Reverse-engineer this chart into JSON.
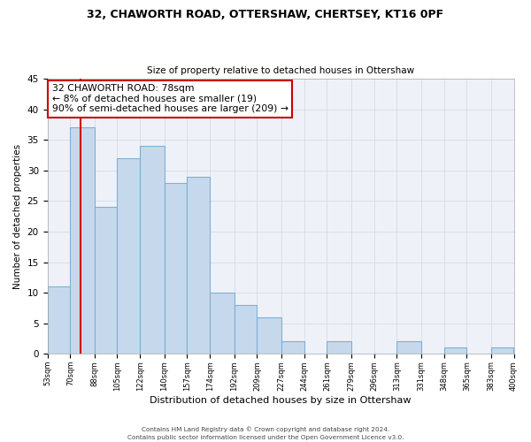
{
  "title_line1": "32, CHAWORTH ROAD, OTTERSHAW, CHERTSEY, KT16 0PF",
  "title_line2": "Size of property relative to detached houses in Ottershaw",
  "xlabel": "Distribution of detached houses by size in Ottershaw",
  "ylabel": "Number of detached properties",
  "bar_values": [
    11,
    37,
    24,
    32,
    34,
    28,
    29,
    10,
    8,
    6,
    2,
    0,
    2,
    0,
    0,
    2,
    0,
    1,
    0,
    1
  ],
  "bin_edges": [
    53,
    70,
    88,
    105,
    122,
    140,
    157,
    174,
    192,
    209,
    227,
    244,
    261,
    279,
    296,
    313,
    331,
    348,
    365,
    383,
    400
  ],
  "tick_labels": [
    "53sqm",
    "70sqm",
    "88sqm",
    "105sqm",
    "122sqm",
    "140sqm",
    "157sqm",
    "174sqm",
    "192sqm",
    "209sqm",
    "227sqm",
    "244sqm",
    "261sqm",
    "279sqm",
    "296sqm",
    "313sqm",
    "331sqm",
    "348sqm",
    "365sqm",
    "383sqm",
    "400sqm"
  ],
  "bar_facecolor": "#c6d9ec",
  "bar_edgecolor": "#7fafd4",
  "grid_color": "#d0d8e0",
  "axes_bg": "#eef2f8",
  "vline_x": 78,
  "vline_color": "#cc0000",
  "annotation_title": "32 CHAWORTH ROAD: 78sqm",
  "annotation_line1": "← 8% of detached houses are smaller (19)",
  "annotation_line2": "90% of semi-detached houses are larger (209) →",
  "annotation_box_color": "#ffffff",
  "annotation_box_edge": "#cc0000",
  "ylim": [
    0,
    45
  ],
  "yticks": [
    0,
    5,
    10,
    15,
    20,
    25,
    30,
    35,
    40,
    45
  ],
  "footer_line1": "Contains HM Land Registry data © Crown copyright and database right 2024.",
  "footer_line2": "Contains public sector information licensed under the Open Government Licence v3.0."
}
